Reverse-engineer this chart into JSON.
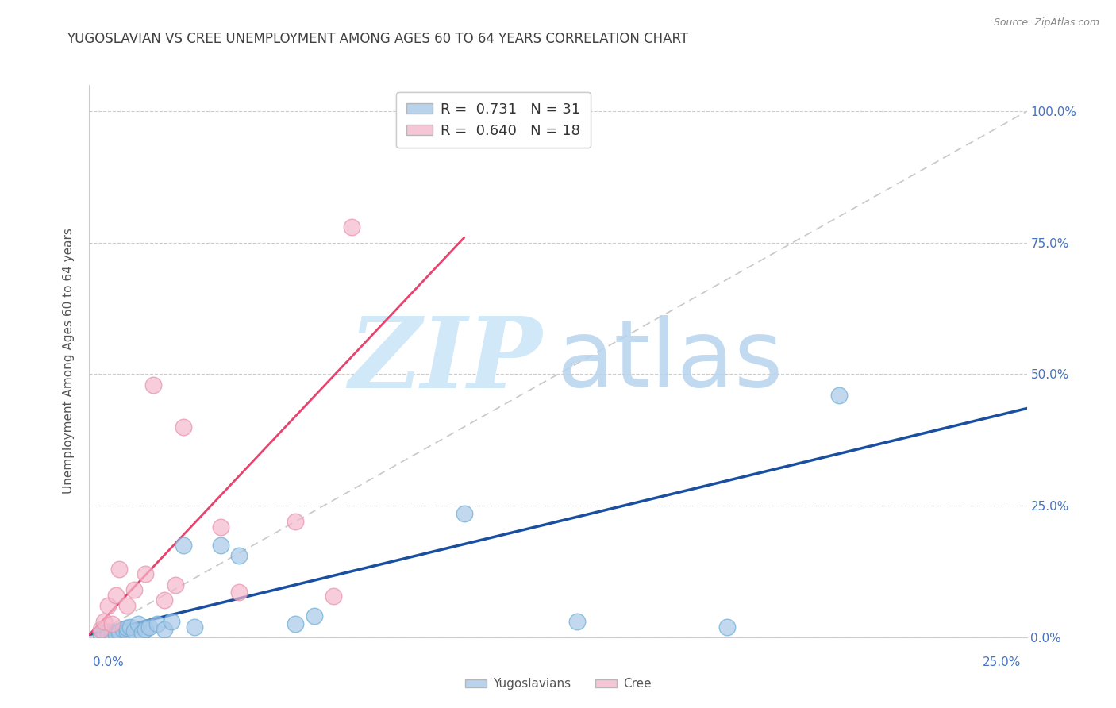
{
  "title": "YUGOSLAVIAN VS CREE UNEMPLOYMENT AMONG AGES 60 TO 64 YEARS CORRELATION CHART",
  "source": "Source: ZipAtlas.com",
  "ylabel": "Unemployment Among Ages 60 to 64 years",
  "xtick_left": "0.0%",
  "xtick_right": "25.0%",
  "xlim": [
    0.0,
    0.25
  ],
  "ylim": [
    0.0,
    1.05
  ],
  "yticks": [
    0.0,
    0.25,
    0.5,
    0.75,
    1.0
  ],
  "ytick_labels": [
    "0.0%",
    "25.0%",
    "50.0%",
    "75.0%",
    "100.0%"
  ],
  "legend_blue_r": "0.731",
  "legend_blue_n": "31",
  "legend_pink_r": "0.640",
  "legend_pink_n": "18",
  "blue_fill": "#a8c8e8",
  "blue_edge": "#6baed6",
  "blue_line": "#1a4fa0",
  "pink_fill": "#f4b8cc",
  "pink_edge": "#e890a8",
  "pink_line": "#e8436e",
  "diag_color": "#c8c8c8",
  "grid_color": "#cccccc",
  "title_color": "#404040",
  "right_label_color": "#4472c4",
  "bg_color": "#ffffff",
  "blue_scatter_x": [
    0.003,
    0.004,
    0.005,
    0.005,
    0.006,
    0.007,
    0.007,
    0.008,
    0.008,
    0.009,
    0.01,
    0.01,
    0.011,
    0.012,
    0.013,
    0.014,
    0.015,
    0.016,
    0.018,
    0.02,
    0.022,
    0.025,
    0.028,
    0.035,
    0.04,
    0.055,
    0.06,
    0.1,
    0.13,
    0.17,
    0.2
  ],
  "blue_scatter_y": [
    0.005,
    0.008,
    0.01,
    0.003,
    0.007,
    0.01,
    0.005,
    0.012,
    0.008,
    0.015,
    0.01,
    0.018,
    0.02,
    0.012,
    0.025,
    0.008,
    0.015,
    0.02,
    0.025,
    0.015,
    0.03,
    0.175,
    0.02,
    0.175,
    0.155,
    0.025,
    0.04,
    0.235,
    0.03,
    0.02,
    0.46
  ],
  "pink_scatter_x": [
    0.003,
    0.004,
    0.005,
    0.006,
    0.007,
    0.008,
    0.01,
    0.012,
    0.015,
    0.017,
    0.02,
    0.023,
    0.025,
    0.035,
    0.04,
    0.055,
    0.065,
    0.07
  ],
  "pink_scatter_y": [
    0.015,
    0.03,
    0.06,
    0.025,
    0.08,
    0.13,
    0.06,
    0.09,
    0.12,
    0.48,
    0.07,
    0.1,
    0.4,
    0.21,
    0.085,
    0.22,
    0.078,
    0.78
  ],
  "blue_line_x": [
    0.0,
    0.25
  ],
  "blue_line_y": [
    0.005,
    0.435
  ],
  "pink_line_x": [
    0.0,
    0.1
  ],
  "pink_line_y": [
    0.005,
    0.76
  ]
}
